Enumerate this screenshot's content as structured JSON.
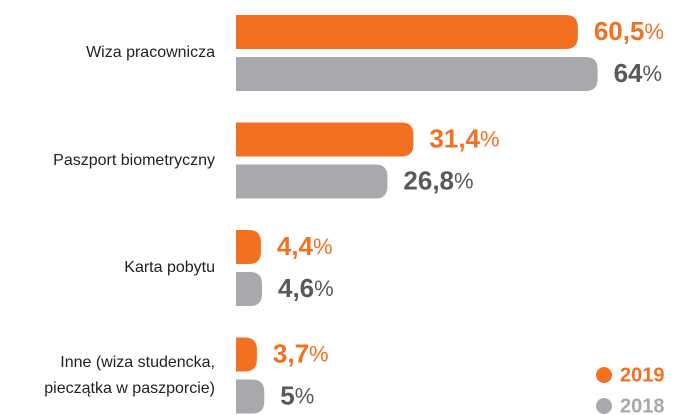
{
  "chart_data": {
    "type": "bar",
    "orientation": "horizontal",
    "categories": [
      "Wiza pracownicza",
      "Paszport biometryczny",
      "Karta pobytu",
      "Inne (wiza studencka, pieczątka w paszporcie)"
    ],
    "series": [
      {
        "name": "2019",
        "color": "#f37021",
        "values": [
          60.5,
          31.4,
          4.4,
          3.7
        ],
        "value_labels": [
          "60,5%",
          "31,4%",
          "4,4%",
          "3,7%"
        ]
      },
      {
        "name": "2018",
        "color": "#a7a9ac",
        "values": [
          64,
          26.8,
          4.6,
          5
        ],
        "value_labels": [
          "64%",
          "26,8%",
          "4,6%",
          "5%"
        ]
      }
    ],
    "legend": "bottom-right"
  }
}
